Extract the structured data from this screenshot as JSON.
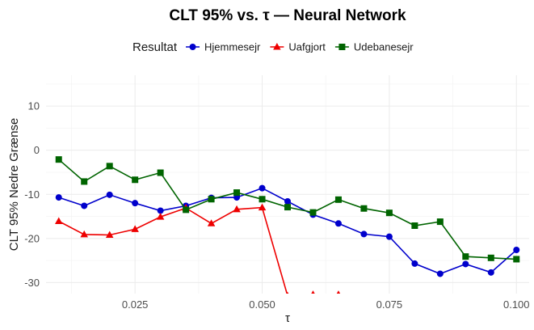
{
  "chart_data": {
    "type": "line",
    "title": "CLT 95% vs. τ — Neural Network",
    "xlabel": "τ",
    "ylabel": "CLT 95% Nedre Grænse",
    "xlim": [
      0.0075,
      0.1025
    ],
    "ylim": [
      -32.5,
      17
    ],
    "x_ticks": [
      0.025,
      0.05,
      0.075,
      0.1
    ],
    "x_tick_labels": [
      "0.025",
      "0.050",
      "0.075",
      "0.100"
    ],
    "y_ticks": [
      -30,
      -20,
      -10,
      0,
      10
    ],
    "y_tick_labels": [
      "-30",
      "-20",
      "-10",
      "0",
      "10"
    ],
    "grid": true,
    "legend": {
      "title": "Resultat",
      "position": "top",
      "entries": [
        {
          "label": "Hjemmesejr",
          "color": "#0000cc",
          "marker": "circle"
        },
        {
          "label": "Uafgjort",
          "color": "#ee0000",
          "marker": "triangle"
        },
        {
          "label": "Udebanesejr",
          "color": "#006400",
          "marker": "square"
        }
      ]
    },
    "series": [
      {
        "name": "Hjemmesejr",
        "color": "#0000cc",
        "marker": "circle",
        "x": [
          0.01,
          0.015,
          0.02,
          0.025,
          0.03,
          0.035,
          0.04,
          0.045,
          0.05,
          0.055,
          0.06,
          0.065,
          0.07,
          0.075,
          0.08,
          0.085,
          0.09,
          0.095,
          0.1
        ],
        "y": [
          -10.7,
          -12.6,
          -10.1,
          -12.0,
          -13.7,
          -12.6,
          -10.8,
          -10.7,
          -8.6,
          -11.6,
          -14.6,
          -16.6,
          -19.0,
          -19.6,
          -25.7,
          -28.0,
          -25.8,
          -27.7,
          -22.6
        ]
      },
      {
        "name": "Uafgjort",
        "color": "#ee0000",
        "marker": "triangle",
        "x": [
          0.01,
          0.015,
          0.02,
          0.025,
          0.03,
          0.035,
          0.04,
          0.045,
          0.05,
          0.055,
          0.06,
          0.065
        ],
        "y": [
          -16.1,
          -19.1,
          -19.2,
          -17.9,
          -15.1,
          -13.1,
          -16.6,
          -13.4,
          -13.0,
          -33.0,
          -32.7,
          -32.7
        ]
      },
      {
        "name": "Udebanesejr",
        "color": "#006400",
        "marker": "square",
        "x": [
          0.01,
          0.015,
          0.02,
          0.025,
          0.03,
          0.035,
          0.04,
          0.045,
          0.05,
          0.055,
          0.06,
          0.065,
          0.07,
          0.075,
          0.08,
          0.085,
          0.09,
          0.095,
          0.1
        ],
        "y": [
          -2.1,
          -7.1,
          -3.6,
          -6.7,
          -5.1,
          -13.5,
          -11.1,
          -9.6,
          -11.1,
          -12.9,
          -14.1,
          -11.2,
          -13.2,
          -14.2,
          -17.1,
          -16.2,
          -24.1,
          -24.4,
          -24.7
        ]
      }
    ]
  }
}
